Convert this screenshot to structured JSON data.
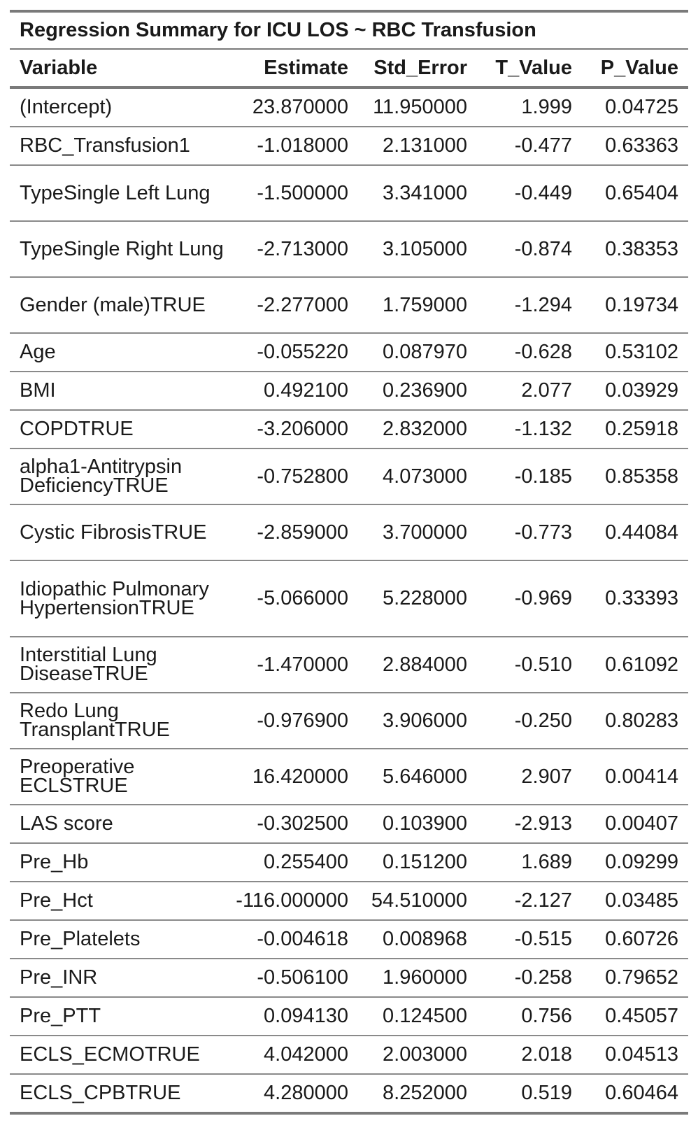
{
  "table": {
    "title": "Regression Summary for ICU LOS ~ RBC Transfusion",
    "headers": [
      "Variable",
      "Estimate",
      "Std_Error",
      "T_Value",
      "P_Value"
    ],
    "rows": [
      {
        "variable": "(Intercept)",
        "estimate": "23.870000",
        "std_error": "11.950000",
        "t_value": "1.999",
        "p_value": "0.04725"
      },
      {
        "variable": "RBC_Transfusion1",
        "estimate": "-1.018000",
        "std_error": "2.131000",
        "t_value": "-0.477",
        "p_value": "0.63363"
      },
      {
        "variable": "TypeSingle Left Lung",
        "estimate": "-1.500000",
        "std_error": "3.341000",
        "t_value": "-0.449",
        "p_value": "0.65404"
      },
      {
        "variable": "TypeSingle Right Lung",
        "estimate": "-2.713000",
        "std_error": "3.105000",
        "t_value": "-0.874",
        "p_value": "0.38353"
      },
      {
        "variable": "Gender (male)TRUE",
        "estimate": "-2.277000",
        "std_error": "1.759000",
        "t_value": "-1.294",
        "p_value": "0.19734"
      },
      {
        "variable": "Age",
        "estimate": "-0.055220",
        "std_error": "0.087970",
        "t_value": "-0.628",
        "p_value": "0.53102"
      },
      {
        "variable": "BMI",
        "estimate": "0.492100",
        "std_error": "0.236900",
        "t_value": "2.077",
        "p_value": "0.03929"
      },
      {
        "variable": "COPDTRUE",
        "estimate": "-3.206000",
        "std_error": "2.832000",
        "t_value": "-1.132",
        "p_value": "0.25918"
      },
      {
        "variable": "alpha1-Antitrypsin DeficiencyTRUE",
        "estimate": "-0.752800",
        "std_error": "4.073000",
        "t_value": "-0.185",
        "p_value": "0.85358"
      },
      {
        "variable": "Cystic FibrosisTRUE",
        "estimate": "-2.859000",
        "std_error": "3.700000",
        "t_value": "-0.773",
        "p_value": "0.44084"
      },
      {
        "variable": "Idiopathic Pulmonary HypertensionTRUE",
        "estimate": "-5.066000",
        "std_error": "5.228000",
        "t_value": "-0.969",
        "p_value": "0.33393"
      },
      {
        "variable": "Interstitial Lung DiseaseTRUE",
        "estimate": "-1.470000",
        "std_error": "2.884000",
        "t_value": "-0.510",
        "p_value": "0.61092"
      },
      {
        "variable": "Redo Lung TransplantTRUE",
        "estimate": "-0.976900",
        "std_error": "3.906000",
        "t_value": "-0.250",
        "p_value": "0.80283"
      },
      {
        "variable": "Preoperative ECLSTRUE",
        "estimate": "16.420000",
        "std_error": "5.646000",
        "t_value": "2.907",
        "p_value": "0.00414"
      },
      {
        "variable": "LAS score",
        "estimate": "-0.302500",
        "std_error": "0.103900",
        "t_value": "-2.913",
        "p_value": "0.00407"
      },
      {
        "variable": "Pre_Hb",
        "estimate": "0.255400",
        "std_error": "0.151200",
        "t_value": "1.689",
        "p_value": "0.09299"
      },
      {
        "variable": "Pre_Hct",
        "estimate": "-116.000000",
        "std_error": "54.510000",
        "t_value": "-2.127",
        "p_value": "0.03485"
      },
      {
        "variable": "Pre_Platelets",
        "estimate": "-0.004618",
        "std_error": "0.008968",
        "t_value": "-0.515",
        "p_value": "0.60726"
      },
      {
        "variable": "Pre_INR",
        "estimate": "-0.506100",
        "std_error": "1.960000",
        "t_value": "-0.258",
        "p_value": "0.79652"
      },
      {
        "variable": "Pre_PTT",
        "estimate": "0.094130",
        "std_error": "0.124500",
        "t_value": "0.756",
        "p_value": "0.45057"
      },
      {
        "variable": "ECLS_ECMOTRUE",
        "estimate": "4.042000",
        "std_error": "2.003000",
        "t_value": "2.018",
        "p_value": "0.04513"
      },
      {
        "variable": "ECLS_CPBTRUE",
        "estimate": "4.280000",
        "std_error": "8.252000",
        "t_value": "0.519",
        "p_value": "0.60464"
      }
    ]
  }
}
